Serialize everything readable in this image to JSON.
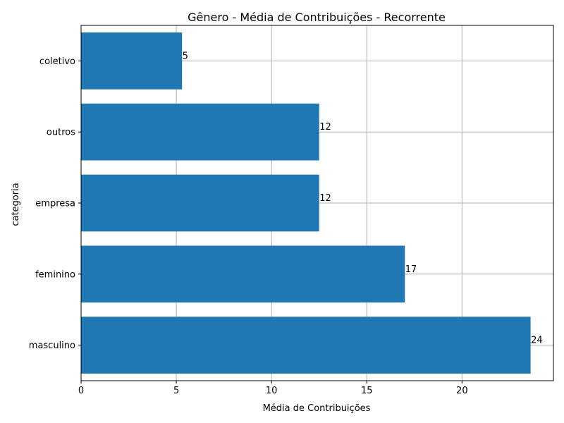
{
  "chart_data": {
    "type": "bar",
    "orientation": "horizontal",
    "title": "Gênero - Média de Contribuições - Recorrente",
    "xlabel": "Média de Contribuições",
    "ylabel": "categoria",
    "categories": [
      "masculino",
      "feminino",
      "empresa",
      "outros",
      "coletivo"
    ],
    "values": [
      23.6,
      17.0,
      12.5,
      12.5,
      5.3
    ],
    "data_labels": [
      "24",
      "17",
      "12",
      "12",
      "5"
    ],
    "xlim": [
      0,
      24.8
    ],
    "xticks": [
      0,
      5,
      10,
      15,
      20
    ],
    "xtick_labels": [
      "0",
      "5",
      "10",
      "15",
      "20"
    ],
    "grid": true,
    "bar_color": "#1f77b4",
    "grid_color": "#b0b0b0"
  }
}
